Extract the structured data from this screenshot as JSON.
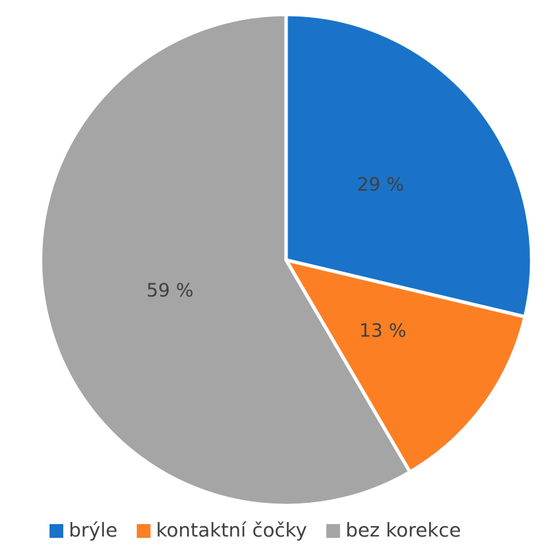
{
  "chart_data": {
    "type": "pie",
    "categories": [
      "brýle",
      "kontaktní čočky",
      "bez korekce"
    ],
    "values": [
      29,
      13,
      59
    ],
    "value_labels": [
      "29 %",
      "13 %",
      "59 %"
    ],
    "colors": [
      "#1a73c8",
      "#fd7f23",
      "#a5a5a5"
    ],
    "legend": "bottom"
  }
}
